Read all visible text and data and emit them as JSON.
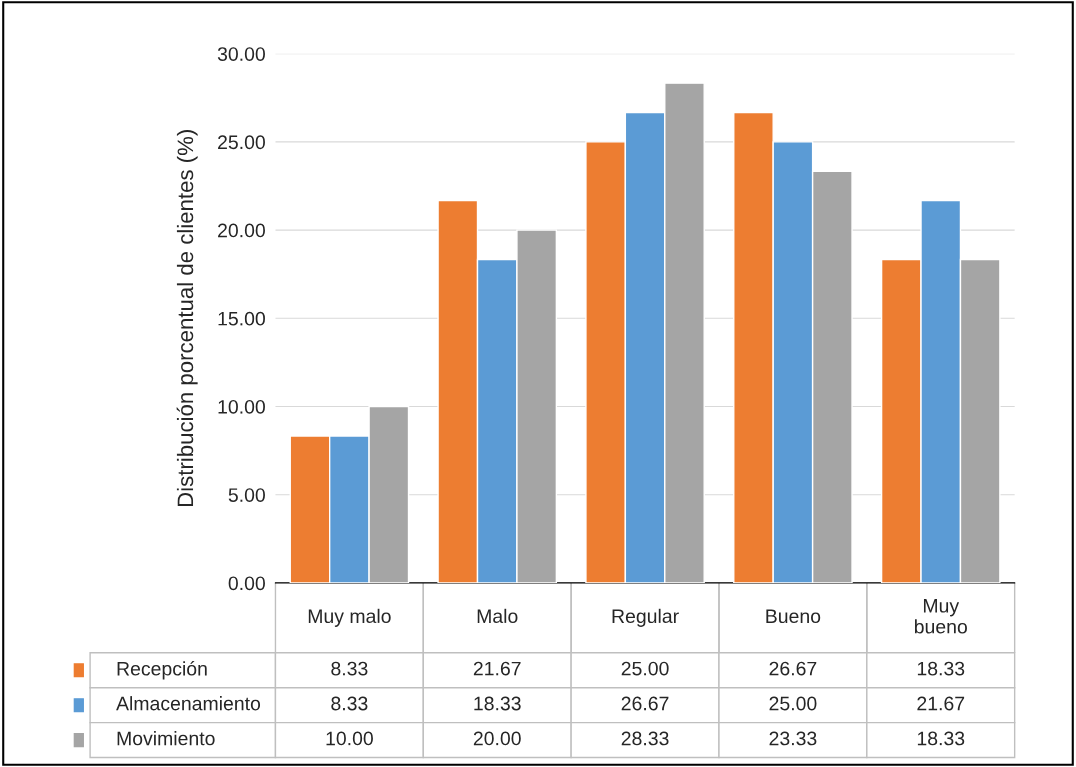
{
  "chart_data": {
    "type": "bar",
    "ylabel": "Distribución porcentual de clientes (%)",
    "categories": [
      "Muy malo",
      "Malo",
      "Regular",
      "Bueno",
      "Muy\nbueno"
    ],
    "series": [
      {
        "name": "Recepción",
        "color": "#ed7d31",
        "values": [
          8.33,
          21.67,
          25.0,
          26.67,
          18.33
        ],
        "value_labels": [
          "8.33",
          "21.67",
          "25.00",
          "26.67",
          "18.33"
        ]
      },
      {
        "name": "Almacenamiento",
        "color": "#5b9bd5",
        "values": [
          8.33,
          18.33,
          26.67,
          25.0,
          21.67
        ],
        "value_labels": [
          "8.33",
          "18.33",
          "26.67",
          "25.00",
          "21.67"
        ]
      },
      {
        "name": "Movimiento",
        "color": "#a5a5a5",
        "values": [
          10.0,
          20.0,
          28.33,
          23.33,
          18.33
        ],
        "value_labels": [
          "10.00",
          "20.00",
          "28.33",
          "23.33",
          "18.33"
        ]
      }
    ],
    "ylim": [
      0,
      30
    ],
    "yticks": [
      {
        "value": 0,
        "label": "0.00"
      },
      {
        "value": 5,
        "label": "5.00"
      },
      {
        "value": 10,
        "label": "10.00"
      },
      {
        "value": 15,
        "label": "15.00"
      },
      {
        "value": 20,
        "label": "20.00"
      },
      {
        "value": 25,
        "label": "25.00"
      },
      {
        "value": 30,
        "label": "30.00"
      }
    ],
    "grid": "y",
    "legend": "bottom"
  }
}
